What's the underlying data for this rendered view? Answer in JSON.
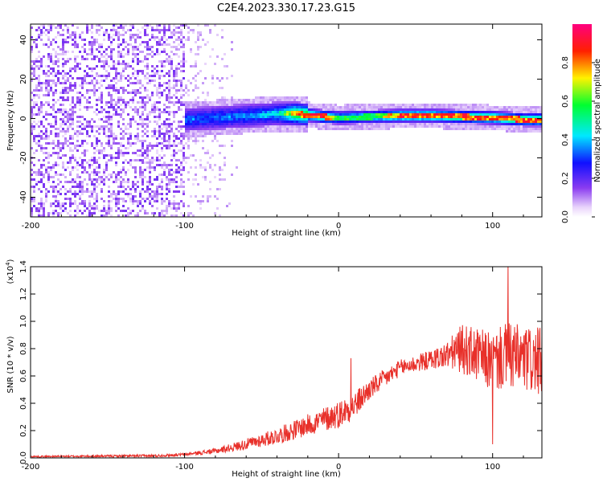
{
  "title": "C2E4.2023.330.17.23.G15",
  "chart_data": [
    {
      "type": "heatmap",
      "xlabel": "Height of straight line (km)",
      "ylabel": "Frequency (Hz)",
      "xlim": [
        -200,
        132
      ],
      "ylim": [
        -50,
        48
      ],
      "xticks": [
        -200,
        -100,
        0,
        100
      ],
      "yticks": [
        -40,
        -20,
        0,
        20,
        40
      ],
      "colorbar": {
        "label": "Normalized spectral amplitude",
        "range": [
          0,
          1
        ],
        "ticks": [
          0.0,
          0.2,
          0.4,
          0.6,
          0.8
        ],
        "colormap": "rainbow (white-violet-blue-cyan-green-yellow-red-magenta)"
      },
      "signal_ridge": {
        "x": [
          -100,
          -80,
          -60,
          -40,
          -28,
          -10,
          0,
          20,
          40,
          60,
          80,
          100,
          120,
          132
        ],
        "y": [
          0,
          1,
          2,
          3,
          3,
          1.5,
          1,
          1.5,
          2,
          2,
          1.5,
          1,
          0,
          0
        ],
        "peak_amplitude": [
          0.3,
          0.3,
          0.35,
          0.45,
          0.9,
          0.9,
          0.6,
          0.6,
          0.9,
          0.9,
          0.9,
          0.9,
          0.9,
          0.9
        ]
      },
      "noise_region": {
        "x_from": -200,
        "x_to": -100,
        "amplitude": 0.1
      }
    },
    {
      "type": "line",
      "xlabel": "Height of straight line (km)",
      "ylabel": "SNR (10 * v/v)",
      "y_multiplier": "(x10",
      "y_multiplier_exp": "4",
      "xlim": [
        -200,
        132
      ],
      "ylim": [
        0,
        1.4
      ],
      "xticks": [
        -200,
        -100,
        0,
        100
      ],
      "yticks": [
        0.0,
        0.2,
        0.4,
        0.6,
        0.8,
        1.0,
        1.2,
        1.4
      ],
      "series": [
        {
          "color": "#e8302a",
          "envelope_x": [
            -200,
            -120,
            -100,
            -80,
            -60,
            -40,
            -20,
            0,
            10,
            20,
            40,
            60,
            70,
            80,
            90,
            100,
            110,
            120,
            132
          ],
          "envelope_mean": [
            0.01,
            0.015,
            0.025,
            0.05,
            0.1,
            0.16,
            0.24,
            0.32,
            0.38,
            0.5,
            0.66,
            0.72,
            0.75,
            0.8,
            0.75,
            0.7,
            0.75,
            0.72,
            0.7
          ],
          "envelope_spread": [
            0.005,
            0.01,
            0.01,
            0.02,
            0.04,
            0.06,
            0.08,
            0.1,
            0.1,
            0.08,
            0.06,
            0.07,
            0.1,
            0.18,
            0.2,
            0.22,
            0.25,
            0.25,
            0.25
          ],
          "notable_peaks": [
            {
              "x": 8,
              "y": 0.73
            },
            {
              "x": 110,
              "y": 1.42
            },
            {
              "x": 100,
              "y": 0.1
            }
          ]
        }
      ]
    }
  ]
}
